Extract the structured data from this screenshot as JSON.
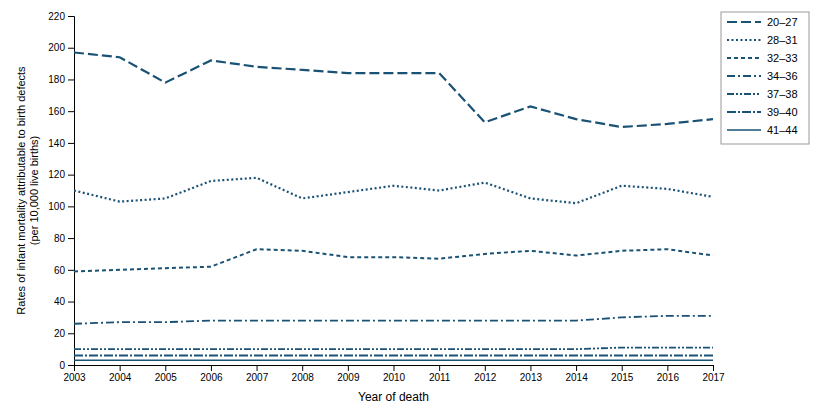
{
  "chart_data": {
    "type": "line",
    "x_label": "Year of death",
    "y_label": "Rates of infant mortality attributable to birth defects\n(per 10,000 live births)",
    "x": [
      2003,
      2004,
      2005,
      2006,
      2007,
      2008,
      2009,
      2010,
      2011,
      2012,
      2013,
      2014,
      2015,
      2016,
      2017
    ],
    "series": [
      {
        "name": "20–27",
        "color": "#1a5276",
        "line_style": "long-dash",
        "values": [
          197,
          194,
          178,
          192,
          188,
          186,
          184,
          184,
          184,
          153,
          163,
          155,
          150,
          152,
          155
        ]
      },
      {
        "name": "28–31",
        "color": "#1a5276",
        "line_style": "dotted",
        "values": [
          110,
          103,
          105,
          116,
          118,
          105,
          109,
          113,
          110,
          115,
          105,
          102,
          113,
          111,
          106
        ]
      },
      {
        "name": "32–33",
        "color": "#1a5276",
        "line_style": "dashed",
        "values": [
          59,
          60,
          61,
          62,
          73,
          72,
          68,
          68,
          67,
          70,
          72,
          69,
          72,
          73,
          69
        ]
      },
      {
        "name": "34–36",
        "color": "#1a5276",
        "line_style": "dash-dot",
        "values": [
          26,
          27,
          27,
          28,
          28,
          28,
          28,
          28,
          28,
          28,
          28,
          28,
          30,
          31,
          31
        ]
      },
      {
        "name": "37–38",
        "color": "#1a5276",
        "line_style": "dash-dot-dot",
        "values": [
          10,
          10,
          10,
          10,
          10,
          10,
          10,
          10,
          10,
          10,
          10,
          10,
          11,
          11,
          11
        ]
      },
      {
        "name": "39–40",
        "color": "#1a5276",
        "line_style": "long-dash-dot",
        "values": [
          6,
          6,
          6,
          6,
          6,
          6,
          6,
          6,
          6,
          6,
          6,
          6,
          6,
          6,
          6
        ]
      },
      {
        "name": "41–44",
        "color": "#1a5276",
        "line_style": "solid",
        "values": [
          3,
          3,
          3,
          3,
          3,
          3,
          3,
          3,
          3,
          3,
          3,
          3,
          3,
          3,
          3
        ]
      }
    ],
    "xlim": [
      2003,
      2017
    ],
    "xticks": [
      2003,
      2004,
      2005,
      2006,
      2007,
      2008,
      2009,
      2010,
      2011,
      2012,
      2013,
      2014,
      2015,
      2016,
      2017
    ],
    "ylim": [
      0,
      220
    ],
    "yticks": [
      0,
      20,
      40,
      60,
      80,
      100,
      120,
      140,
      160,
      180,
      200,
      220
    ],
    "grid": false,
    "legend": "right"
  }
}
